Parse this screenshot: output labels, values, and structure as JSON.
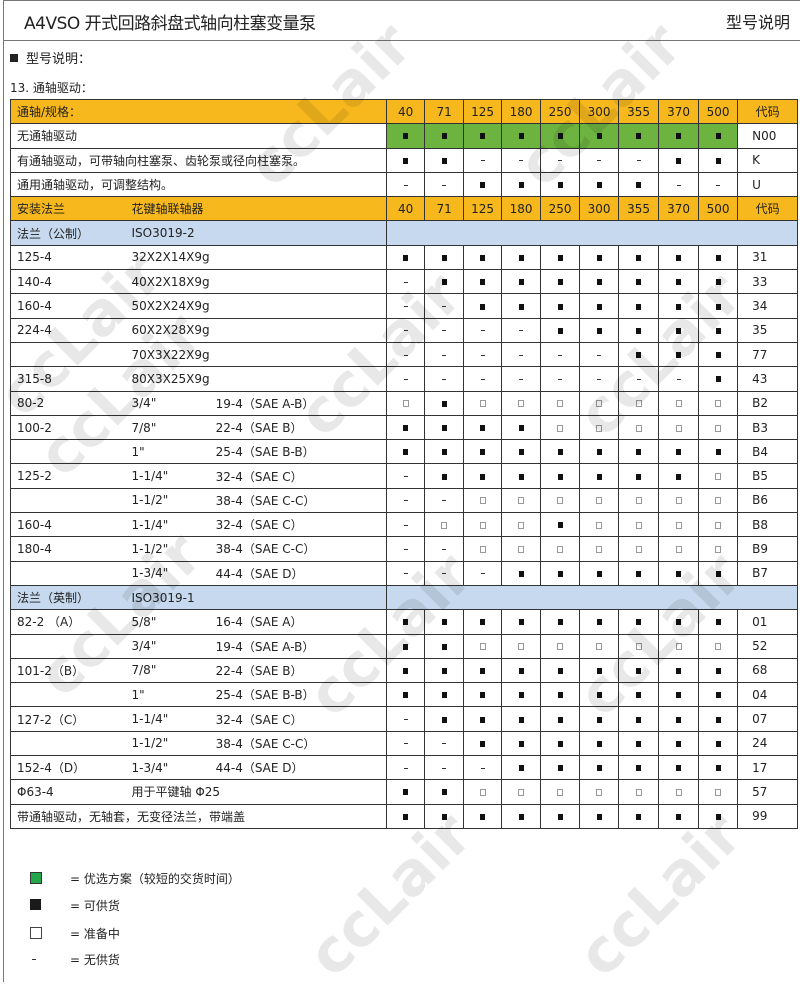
{
  "header": {
    "title": "A4VSO 开式回路斜盘式轴向柱塞变量泵",
    "right": "型号说明"
  },
  "section_title": "型号说明：",
  "sub_title": "13. 通轴驱动：",
  "sizes": [
    "40",
    "71",
    "125",
    "180",
    "250",
    "300",
    "355",
    "370",
    "500"
  ],
  "code_label": "代码",
  "colors": {
    "header": "#f7b81e",
    "section": "#c6d9ee",
    "preferred": "#6cb33f"
  },
  "rows": [
    {
      "type": "header",
      "a": "通轴/规格：",
      "b": ""
    },
    {
      "type": "data",
      "full": "无通轴驱动",
      "symbols": [
        "g",
        "g",
        "g",
        "g",
        "g",
        "g",
        "g",
        "g",
        "g"
      ],
      "code": "N00"
    },
    {
      "type": "data",
      "full": "有通轴驱动，可带轴向柱塞泵、齿轮泵或径向柱塞泵。",
      "symbols": [
        "b",
        "b",
        "-",
        "-",
        "-",
        "-",
        "-",
        "b",
        "b"
      ],
      "code": "K"
    },
    {
      "type": "data",
      "full": "通用通轴驱动，可调整结构。",
      "symbols": [
        "-",
        "-",
        "b",
        "b",
        "b",
        "b",
        "b",
        "-",
        "-"
      ],
      "code": "U"
    },
    {
      "type": "header",
      "a": "安装法兰",
      "b": "花键轴联轴器"
    },
    {
      "type": "section",
      "a": "法兰（公制）",
      "b": "ISO3019-2"
    },
    {
      "type": "data",
      "flange": "125-4",
      "spline": "32X2X14X9g",
      "sae": "",
      "symbols": [
        "b",
        "b",
        "b",
        "b",
        "b",
        "b",
        "b",
        "b",
        "b"
      ],
      "code": "31"
    },
    {
      "type": "data",
      "flange": "140-4",
      "spline": "40X2X18X9g",
      "sae": "",
      "symbols": [
        "-",
        "b",
        "b",
        "b",
        "b",
        "b",
        "b",
        "b",
        "b"
      ],
      "code": "33"
    },
    {
      "type": "data",
      "flange": "160-4",
      "spline": "50X2X24X9g",
      "sae": "",
      "symbols": [
        "-",
        "-",
        "b",
        "b",
        "b",
        "b",
        "b",
        "b",
        "b"
      ],
      "code": "34"
    },
    {
      "type": "data",
      "flange": "224-4",
      "spline": "60X2X28X9g",
      "sae": "",
      "symbols": [
        "-",
        "-",
        "-",
        "-",
        "b",
        "b",
        "b",
        "b",
        "b"
      ],
      "code": "35"
    },
    {
      "type": "data",
      "flange": "",
      "spline": "70X3X22X9g",
      "sae": "",
      "symbols": [
        "-",
        "-",
        "-",
        "-",
        "-",
        "-",
        "b",
        "b",
        "b"
      ],
      "code": "77"
    },
    {
      "type": "data",
      "flange": "315-8",
      "spline": "80X3X25X9g",
      "sae": "",
      "symbols": [
        "-",
        "-",
        "-",
        "-",
        "-",
        "-",
        "-",
        "-",
        "b"
      ],
      "code": "43"
    },
    {
      "type": "data",
      "flange": "80-2",
      "spline": "3/4\"",
      "sae": "19-4（SAE A-B）",
      "symbols": [
        "w",
        "b",
        "w",
        "w",
        "w",
        "w",
        "w",
        "w",
        "w"
      ],
      "code": "B2"
    },
    {
      "type": "data",
      "flange": "100-2",
      "spline": "7/8\"",
      "sae": "22-4（SAE B）",
      "symbols": [
        "b",
        "b",
        "b",
        "b",
        "w",
        "w",
        "w",
        "w",
        "w"
      ],
      "code": "B3"
    },
    {
      "type": "data",
      "flange": "",
      "spline": "1\"",
      "sae": "25-4（SAE B-B）",
      "symbols": [
        "b",
        "b",
        "b",
        "b",
        "b",
        "b",
        "b",
        "b",
        "b"
      ],
      "code": "B4"
    },
    {
      "type": "data",
      "flange": "125-2",
      "spline": "1-1/4\"",
      "sae": "32-4（SAE C）",
      "symbols": [
        "-",
        "b",
        "b",
        "b",
        "b",
        "b",
        "b",
        "b",
        "w"
      ],
      "code": "B5"
    },
    {
      "type": "data",
      "flange": "",
      "spline": "1-1/2\"",
      "sae": "38-4（SAE C-C）",
      "symbols": [
        "-",
        "-",
        "w",
        "w",
        "w",
        "w",
        "w",
        "w",
        "w"
      ],
      "code": "B6"
    },
    {
      "type": "data",
      "flange": "160-4",
      "spline": "1-1/4\"",
      "sae": "32-4（SAE C）",
      "symbols": [
        "-",
        "w",
        "w",
        "w",
        "b",
        "w",
        "w",
        "w",
        "w"
      ],
      "code": "B8"
    },
    {
      "type": "data",
      "flange": "180-4",
      "spline": "1-1/2\"",
      "sae": "38-4（SAE C-C）",
      "symbols": [
        "-",
        "-",
        "w",
        "w",
        "w",
        "w",
        "w",
        "w",
        "w"
      ],
      "code": "B9"
    },
    {
      "type": "data",
      "flange": "",
      "spline": "1-3/4\"",
      "sae": "44-4（SAE D）",
      "symbols": [
        "-",
        "-",
        "-",
        "b",
        "b",
        "b",
        "b",
        "b",
        "b"
      ],
      "code": "B7"
    },
    {
      "type": "section",
      "a": "法兰（英制）",
      "b": "ISO3019-1"
    },
    {
      "type": "data",
      "flange": "82-2 （A）",
      "spline": "5/8\"",
      "sae": "16-4（SAE A）",
      "symbols": [
        "b",
        "b",
        "b",
        "b",
        "b",
        "b",
        "b",
        "b",
        "b"
      ],
      "code": "01"
    },
    {
      "type": "data",
      "flange": "",
      "spline": "3/4\"",
      "sae": "19-4（SAE A-B）",
      "symbols": [
        "b",
        "b",
        "w",
        "w",
        "w",
        "w",
        "w",
        "w",
        "w"
      ],
      "code": "52"
    },
    {
      "type": "data",
      "flange": "101-2（B）",
      "spline": "7/8\"",
      "sae": "22-4（SAE B）",
      "symbols": [
        "b",
        "b",
        "b",
        "b",
        "b",
        "b",
        "b",
        "b",
        "b"
      ],
      "code": "68"
    },
    {
      "type": "data",
      "flange": "",
      "spline": "1\"",
      "sae": "25-4（SAE B-B）",
      "symbols": [
        "b",
        "b",
        "b",
        "b",
        "b",
        "b",
        "b",
        "b",
        "b"
      ],
      "code": "04"
    },
    {
      "type": "data",
      "flange": "127-2（C）",
      "spline": "1-1/4\"",
      "sae": "32-4（SAE C）",
      "symbols": [
        "-",
        "b",
        "b",
        "b",
        "b",
        "b",
        "b",
        "b",
        "b"
      ],
      "code": "07"
    },
    {
      "type": "data",
      "flange": "",
      "spline": "1-1/2\"",
      "sae": "38-4（SAE C-C）",
      "symbols": [
        "-",
        "-",
        "b",
        "b",
        "b",
        "b",
        "b",
        "b",
        "b"
      ],
      "code": "24"
    },
    {
      "type": "data",
      "flange": "152-4（D）",
      "spline": "1-3/4\"",
      "sae": "44-4（SAE D）",
      "symbols": [
        "-",
        "-",
        "-",
        "b",
        "b",
        "b",
        "b",
        "b",
        "b"
      ],
      "code": "17"
    },
    {
      "type": "data",
      "flange": "Φ63-4",
      "spline": "用于平键轴  Φ25",
      "sae": "",
      "wide_spline": true,
      "symbols": [
        "b",
        "b",
        "w",
        "w",
        "w",
        "w",
        "w",
        "w",
        "w"
      ],
      "code": "57"
    },
    {
      "type": "data",
      "full": "带通轴驱动，无轴套，无变径法兰，带端盖",
      "symbols": [
        "b",
        "b",
        "b",
        "b",
        "b",
        "b",
        "b",
        "b",
        "b"
      ],
      "code": "99"
    }
  ],
  "legend": [
    {
      "symbol": "green",
      "text": "=  优选方案（较短的交货时间）"
    },
    {
      "symbol": "black",
      "text": "=  可供货"
    },
    {
      "symbol": "white",
      "text": "=  准备中"
    },
    {
      "symbol": "dash",
      "text": "=  无供货"
    }
  ],
  "watermark": "ccLair"
}
